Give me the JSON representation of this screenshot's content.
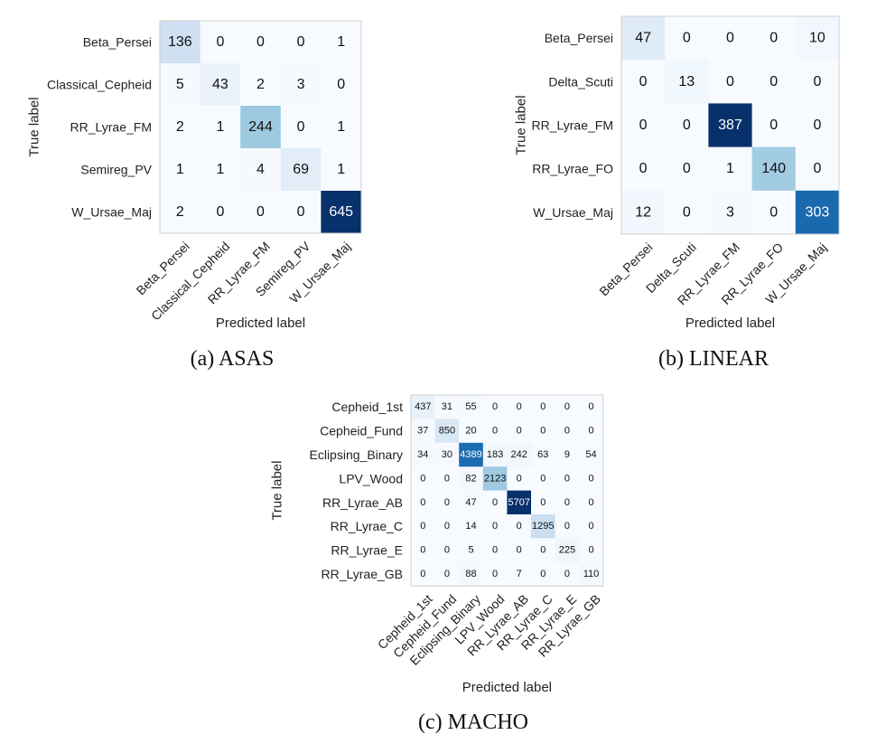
{
  "chart_data": [
    {
      "type": "heatmap",
      "caption": "(a) ASAS",
      "xlabel": "Predicted label",
      "ylabel": "True label",
      "row_labels": [
        "Beta_Persei",
        "Classical_Cepheid",
        "RR_Lyrae_FM",
        "Semireg_PV",
        "W_Ursae_Maj"
      ],
      "col_labels": [
        "Beta_Persei",
        "Classical_Cepheid",
        "RR_Lyrae_FM",
        "Semireg_PV",
        "W_Ursae_Maj"
      ],
      "values": [
        [
          136,
          0,
          0,
          0,
          1
        ],
        [
          5,
          43,
          2,
          3,
          0
        ],
        [
          2,
          1,
          244,
          0,
          1
        ],
        [
          1,
          1,
          4,
          69,
          1
        ],
        [
          2,
          0,
          0,
          0,
          645
        ]
      ]
    },
    {
      "type": "heatmap",
      "caption": "(b) LINEAR",
      "xlabel": "Predicted label",
      "ylabel": "True label",
      "row_labels": [
        "Beta_Persei",
        "Delta_Scuti",
        "RR_Lyrae_FM",
        "RR_Lyrae_FO",
        "W_Ursae_Maj"
      ],
      "col_labels": [
        "Beta_Persei",
        "Delta_Scuti",
        "RR_Lyrae_FM",
        "RR_Lyrae_FO",
        "W_Ursae_Maj"
      ],
      "values": [
        [
          47,
          0,
          0,
          0,
          10
        ],
        [
          0,
          13,
          0,
          0,
          0
        ],
        [
          0,
          0,
          387,
          0,
          0
        ],
        [
          0,
          0,
          1,
          140,
          0
        ],
        [
          12,
          0,
          3,
          0,
          303
        ]
      ]
    },
    {
      "type": "heatmap",
      "caption": "(c) MACHO",
      "xlabel": "Predicted label",
      "ylabel": "True label",
      "row_labels": [
        "Cepheid_1st",
        "Cepheid_Fund",
        "Eclipsing_Binary",
        "LPV_Wood",
        "RR_Lyrae_AB",
        "RR_Lyrae_C",
        "RR_Lyrae_E",
        "RR_Lyrae_GB"
      ],
      "col_labels": [
        "Cepheid_1st",
        "Cepheid_Fund",
        "Eclipsing_Binary",
        "LPV_Wood",
        "RR_Lyrae_AB",
        "RR_Lyrae_C",
        "RR_Lyrae_E",
        "RR_Lyrae_GB"
      ],
      "values": [
        [
          437,
          31,
          55,
          0,
          0,
          0,
          0,
          0
        ],
        [
          37,
          850,
          20,
          0,
          0,
          0,
          0,
          0
        ],
        [
          34,
          30,
          4389,
          183,
          242,
          63,
          9,
          54
        ],
        [
          0,
          0,
          82,
          2123,
          0,
          0,
          0,
          0
        ],
        [
          0,
          0,
          47,
          0,
          5707,
          0,
          0,
          0
        ],
        [
          0,
          0,
          14,
          0,
          0,
          1295,
          0,
          0
        ],
        [
          0,
          0,
          5,
          0,
          0,
          0,
          225,
          0
        ],
        [
          0,
          0,
          88,
          0,
          7,
          0,
          0,
          110
        ]
      ]
    }
  ],
  "colormap": [
    "#f7fbff",
    "#deebf7",
    "#c6dbef",
    "#9ecae1",
    "#6baed6",
    "#4292c6",
    "#2171b5",
    "#08519c",
    "#08306b"
  ]
}
